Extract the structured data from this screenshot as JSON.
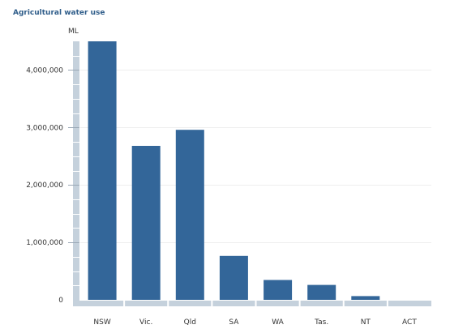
{
  "chart_data": {
    "type": "bar",
    "title": "Agricultural water use",
    "ylabel": "ML",
    "xlabel": "",
    "categories": [
      "NSW",
      "Vic.",
      "Qld",
      "SA",
      "WA",
      "Tas.",
      "NT",
      "ACT"
    ],
    "values": [
      4500000,
      2680000,
      2960000,
      765000,
      345000,
      260000,
      65000,
      0
    ],
    "ylim": [
      0,
      4500000
    ],
    "yticks": [
      0,
      1000000,
      2000000,
      3000000,
      4000000
    ],
    "ytick_labels": [
      "0",
      "1,000,000",
      "2,000,000",
      "3,000,000",
      "4,000,000"
    ],
    "grid": true,
    "legend": "none",
    "colors": {
      "bar": "#336699",
      "axis": "#c5d1dc",
      "grid": "#eeeeee",
      "title": "#2f5d8a",
      "text": "#333333"
    }
  }
}
